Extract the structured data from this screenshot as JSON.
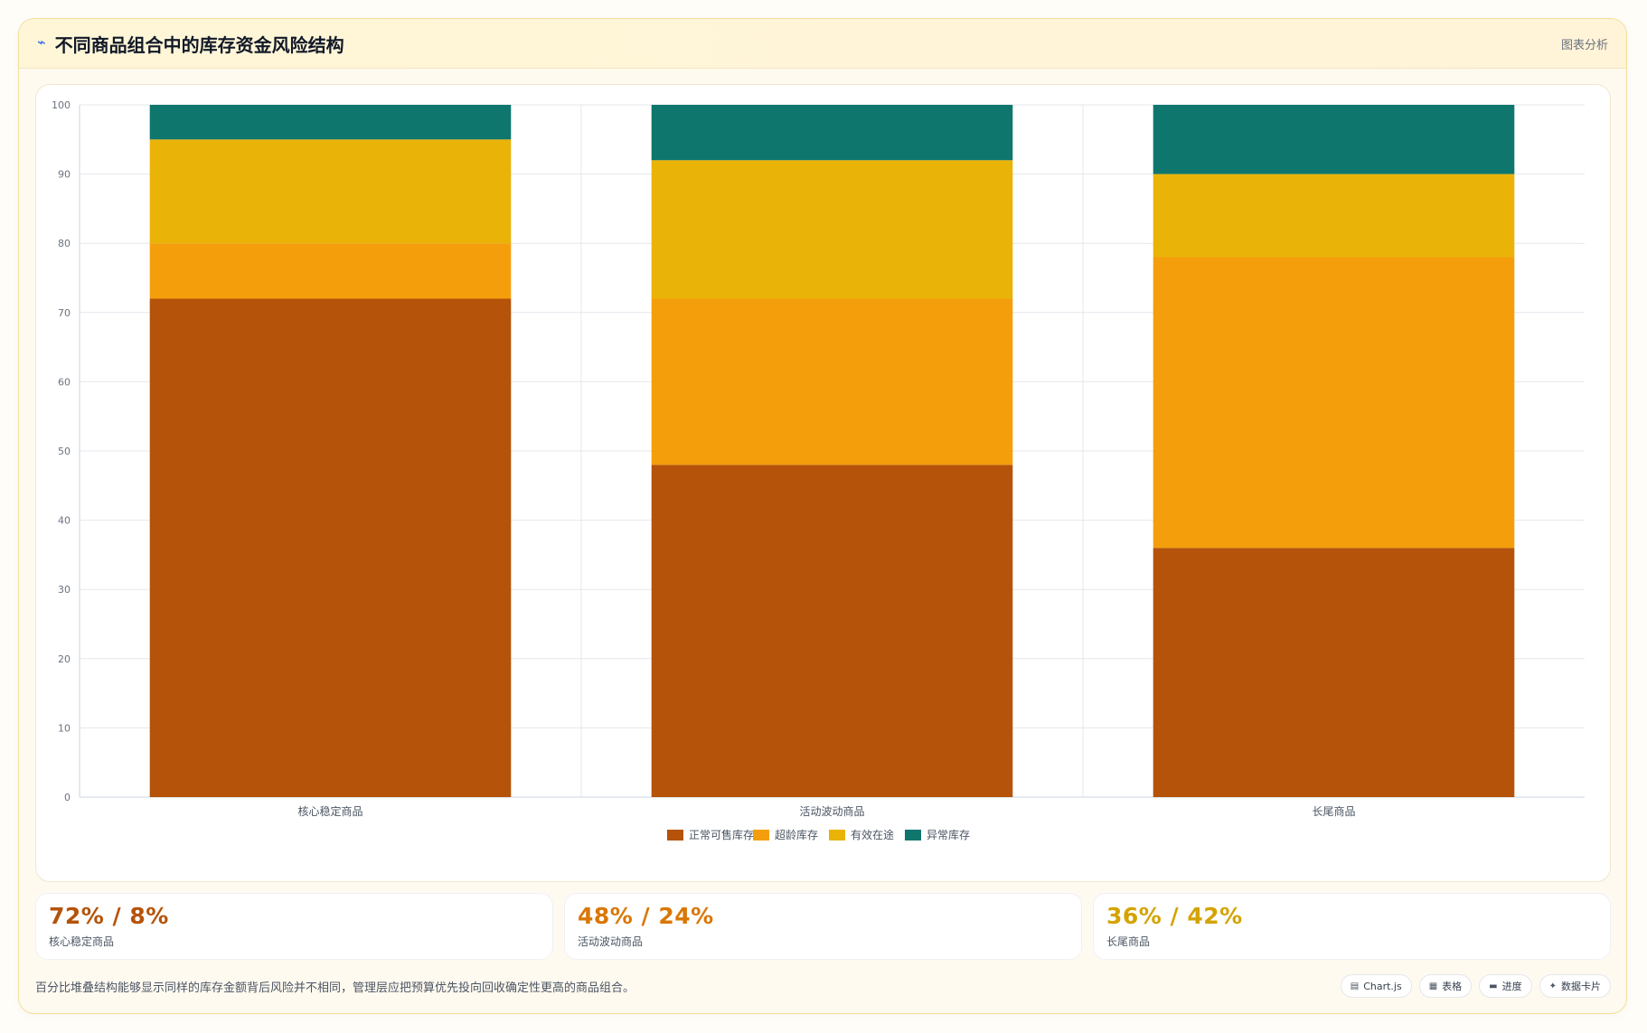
{
  "header": {
    "title": "不同商品组合中的库存资金风险结构",
    "icon": "trend-icon",
    "right_link": "图表分析"
  },
  "colors": {
    "normal": "#b45309",
    "over": "#f59e0b",
    "transit": "#eab308",
    "abnormal": "#0f766e",
    "grid": "#e5e7eb",
    "axis": "#cbd5e1"
  },
  "chart_data": {
    "type": "bar",
    "stacked": true,
    "categories": [
      "核心稳定商品",
      "活动波动商品",
      "长尾商品"
    ],
    "series": [
      {
        "name": "正常可售库存",
        "values": [
          72,
          48,
          36
        ],
        "color": "#b45309"
      },
      {
        "name": "超龄库存",
        "values": [
          8,
          24,
          42
        ],
        "color": "#f59e0b"
      },
      {
        "name": "有效在途",
        "values": [
          15,
          20,
          12
        ],
        "color": "#eab308"
      },
      {
        "name": "异常库存",
        "values": [
          5,
          8,
          10
        ],
        "color": "#0f766e"
      }
    ],
    "ylim": [
      0,
      100
    ],
    "yticks": [
      0,
      10,
      20,
      30,
      40,
      50,
      60,
      70,
      80,
      90,
      100
    ],
    "title": "",
    "xlabel": "",
    "ylabel": "",
    "grid": true,
    "legend_position": "bottom"
  },
  "stats": [
    {
      "value": "72% / 8%",
      "label": "核心稳定商品",
      "color": "#b45309"
    },
    {
      "value": "48% / 24%",
      "label": "活动波动商品",
      "color": "#d97706"
    },
    {
      "value": "36% / 42%",
      "label": "长尾商品",
      "color": "#d4a300"
    }
  ],
  "footer": {
    "text": "百分比堆叠结构能够显示同样的库存金额背后风险并不相同，管理层应把预算优先投向回收确定性更高的商品组合。",
    "chips": [
      {
        "icon": "chart-icon",
        "label": "Chart.js"
      },
      {
        "icon": "table-icon",
        "label": "表格"
      },
      {
        "icon": "progress-icon",
        "label": "进度"
      },
      {
        "icon": "data-card-icon",
        "label": "数据卡片"
      }
    ]
  }
}
